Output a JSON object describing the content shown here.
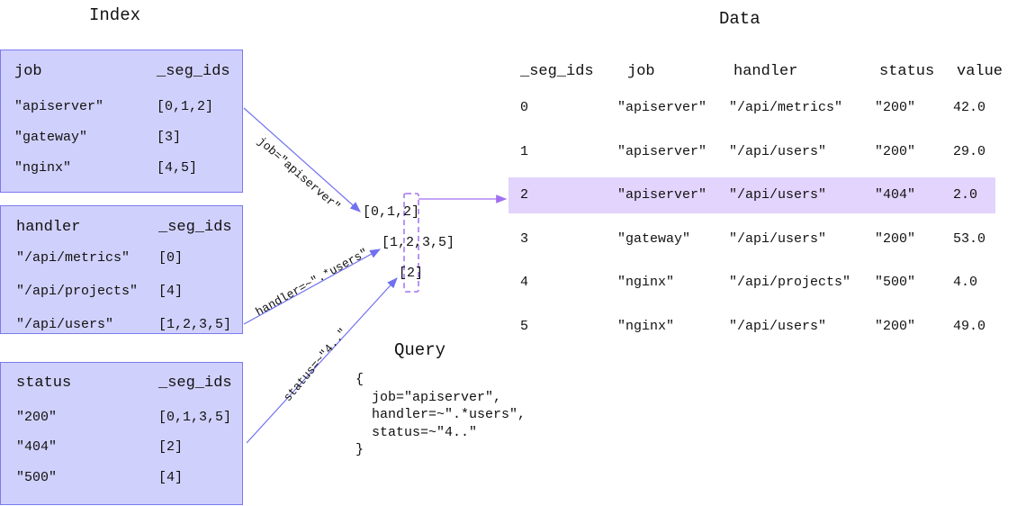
{
  "index": {
    "title": "Index",
    "tables": [
      {
        "key": "job",
        "col": "_seg_ids",
        "rows": [
          [
            "\"apiserver\"",
            "[0,1,2]"
          ],
          [
            "\"gateway\"",
            "[3]"
          ],
          [
            "\"nginx\"",
            "[4,5]"
          ]
        ]
      },
      {
        "key": "handler",
        "col": "_seg_ids",
        "rows": [
          [
            "\"/api/metrics\"",
            "[0]"
          ],
          [
            "\"/api/projects\"",
            "[4]"
          ],
          [
            "\"/api/users\"",
            "[1,2,3,5]"
          ]
        ]
      },
      {
        "key": "status",
        "col": "_seg_ids",
        "rows": [
          [
            "\"200\"",
            "[0,1,3,5]"
          ],
          [
            "\"404\"",
            "[2]"
          ],
          [
            "\"500\"",
            "[4]"
          ]
        ]
      }
    ]
  },
  "matches": {
    "labels": [
      "job=\"apiserver\"",
      "handler=~\".*users\"",
      "status=~\"4..\""
    ],
    "lists": [
      "[0,1,2]",
      "[1,2,3,5]",
      "[2]"
    ]
  },
  "query": {
    "title": "Query",
    "lines": [
      "{",
      "  job=\"apiserver\",",
      "  handler=~\".*users\",",
      "  status=~\"4..\"",
      "}"
    ]
  },
  "data": {
    "title": "Data",
    "headers": [
      "_seg_ids",
      "job",
      "handler",
      "status",
      "value"
    ],
    "rows": [
      [
        "0",
        "\"apiserver\"",
        "\"/api/metrics\"",
        "\"200\"",
        "42.0"
      ],
      [
        "1",
        "\"apiserver\"",
        "\"/api/users\"",
        "\"200\"",
        "29.0"
      ],
      [
        "2",
        "\"apiserver\"",
        "\"/api/users\"",
        "\"404\"",
        "2.0"
      ],
      [
        "3",
        "\"gateway\"",
        "\"/api/users\"",
        "\"200\"",
        "53.0"
      ],
      [
        "4",
        "\"nginx\"",
        "\"/api/projects\"",
        "\"500\"",
        "4.0"
      ],
      [
        "5",
        "\"nginx\"",
        "\"/api/users\"",
        "\"200\"",
        "49.0"
      ]
    ],
    "highlighted_row": 2
  },
  "colors": {
    "box_fill": "#d0d0fc",
    "box_border": "#7b7bf0",
    "arrow": "#7070f0",
    "highlight": "#e2d4fc",
    "dashed": "#a070f0"
  }
}
